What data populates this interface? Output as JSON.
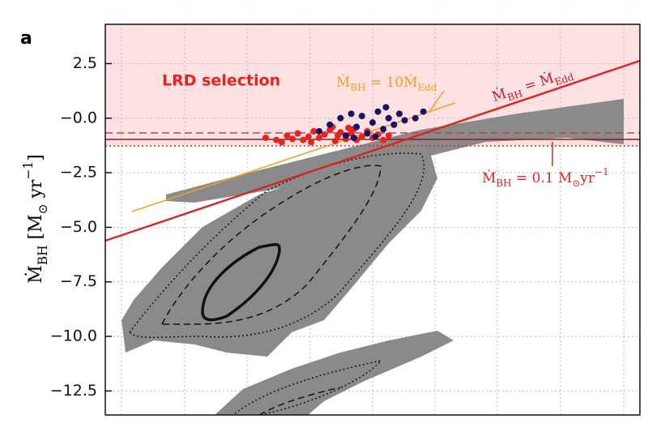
{
  "chart_data": {
    "type": "scatter",
    "panel_label": "a",
    "y_label": [
      {
        "t": "Ṁ"
      },
      {
        "t": "BH",
        "sub": true
      },
      {
        "t": " [M"
      },
      {
        "t": "⊙",
        "sub": true
      },
      {
        "t": " yr"
      },
      {
        "t": "−1",
        "sup": true
      },
      {
        "t": "]"
      }
    ],
    "annotations": {
      "selection": "LRD selection",
      "ten_edd": [
        {
          "t": "Ṁ"
        },
        {
          "t": "BH",
          "sub": true
        },
        {
          "t": " = 10Ṁ"
        },
        {
          "t": "Edd",
          "sub": true
        }
      ],
      "edd": [
        {
          "t": "Ṁ"
        },
        {
          "t": "BH",
          "sub": true
        },
        {
          "t": " = Ṁ"
        },
        {
          "t": "Edd",
          "sub": true
        }
      ],
      "cut": [
        {
          "t": "Ṁ"
        },
        {
          "t": "BH",
          "sub": true
        },
        {
          "t": " = 0.1 M"
        },
        {
          "t": "⊙",
          "sub": true
        },
        {
          "t": "yr"
        },
        {
          "t": "−1",
          "sup": true
        }
      ]
    },
    "xlim": [
      0,
      10
    ],
    "ylim": [
      -13.6,
      4.3
    ],
    "yticks": [
      2.5,
      {
        "value": 0,
        "label": "−0.0"
      },
      {
        "value": -2.5,
        "label": "−2.5"
      },
      {
        "value": -5,
        "label": "−5.0"
      },
      {
        "value": -7.5,
        "label": "−7.5"
      },
      {
        "value": -10,
        "label": "−10.0"
      },
      {
        "value": -12.5,
        "label": "−12.5"
      }
    ],
    "grid": true,
    "series": [
      {
        "color": "#e8231f",
        "x": [
          3.0,
          3.2,
          3.4,
          3.5,
          3.6,
          3.7,
          3.8,
          3.9,
          4.0,
          4.1,
          4.2,
          4.3,
          4.35,
          4.4,
          4.5,
          4.55,
          4.6,
          4.7,
          4.8,
          4.9,
          5.0,
          5.1,
          5.2,
          5.3,
          3.3,
          3.85,
          4.25,
          4.65
        ],
        "values": [
          -0.9,
          -1.0,
          -0.8,
          -0.95,
          -0.7,
          -1.0,
          -0.85,
          -0.6,
          -0.9,
          -0.75,
          -0.55,
          -1.05,
          -0.8,
          -0.65,
          -0.95,
          -0.45,
          -0.7,
          -1.0,
          -0.85,
          -0.6,
          -0.9,
          -0.75,
          -1.0,
          -0.8,
          -1.1,
          -1.1,
          -0.4,
          -0.5
        ]
      },
      {
        "color": "#1b1464",
        "x": [
          4.0,
          4.2,
          4.4,
          4.5,
          4.6,
          4.7,
          4.8,
          4.9,
          5.0,
          5.1,
          5.2,
          5.3,
          5.4,
          5.5,
          5.6,
          5.8,
          5.95,
          4.65,
          5.05,
          5.25
        ],
        "values": [
          -0.6,
          -0.3,
          0.0,
          -0.8,
          0.2,
          -0.4,
          0.1,
          -0.7,
          -0.2,
          0.3,
          -0.5,
          0.0,
          -0.3,
          0.2,
          -0.1,
          0.0,
          0.3,
          -0.9,
          -0.85,
          0.5
        ]
      }
    ]
  }
}
